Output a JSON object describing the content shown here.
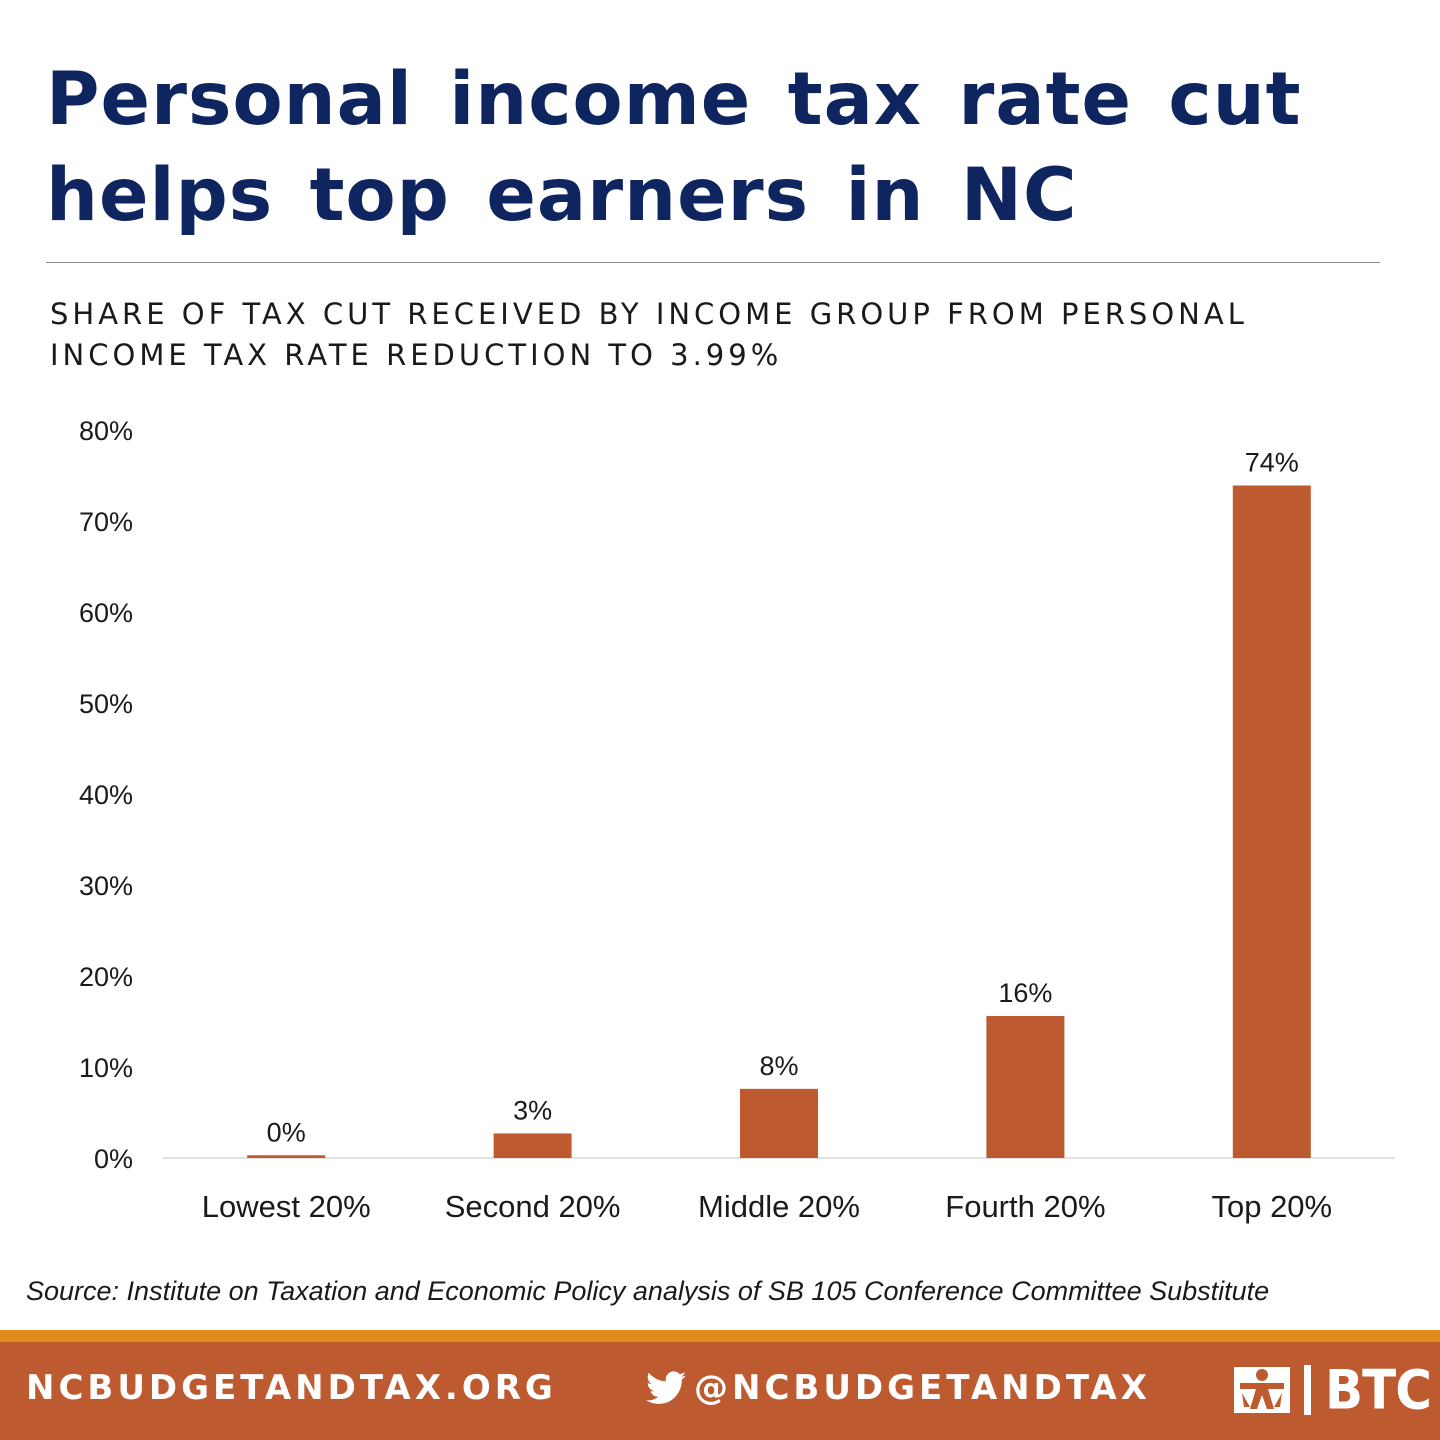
{
  "header": {
    "title_lines": [
      "Personal income tax rate cut",
      "helps top earners in NC"
    ],
    "subtitle_lines": [
      "SHARE OF TAX CUT RECEIVED BY INCOME GROUP FROM PERSONAL",
      "INCOME TAX RATE REDUCTION TO 3.99%"
    ]
  },
  "chart_data": {
    "type": "bar",
    "categories": [
      "Lowest 20%",
      "Second 20%",
      "Middle 20%",
      "Fourth 20%",
      "Top 20%"
    ],
    "values": [
      0.3,
      2.7,
      7.6,
      15.6,
      73.9
    ],
    "data_labels": [
      "0%",
      "3%",
      "8%",
      "16%",
      "74%"
    ],
    "ylim": [
      0,
      80
    ],
    "yticks": [
      0,
      10,
      20,
      30,
      40,
      50,
      60,
      70,
      80
    ],
    "ytick_labels": [
      "0%",
      "10%",
      "20%",
      "30%",
      "40%",
      "50%",
      "60%",
      "70%",
      "80%"
    ],
    "grid": false,
    "legend": "none",
    "bar_color": "#bd5a30"
  },
  "source": "Source: Institute on Taxation and Economic Policy analysis of SB 105 Conference Committee Substitute",
  "footer": {
    "site": "NCBUDGETANDTAX.ORG",
    "twitter": "@NCBUDGETANDTAX",
    "twitter_icon": "twitter-bird-icon",
    "logo_text": "BTC",
    "logo_icon": "btc-figure-logo-icon",
    "stripe_color": "#e08b1e",
    "background_color": "#bd5a30"
  }
}
